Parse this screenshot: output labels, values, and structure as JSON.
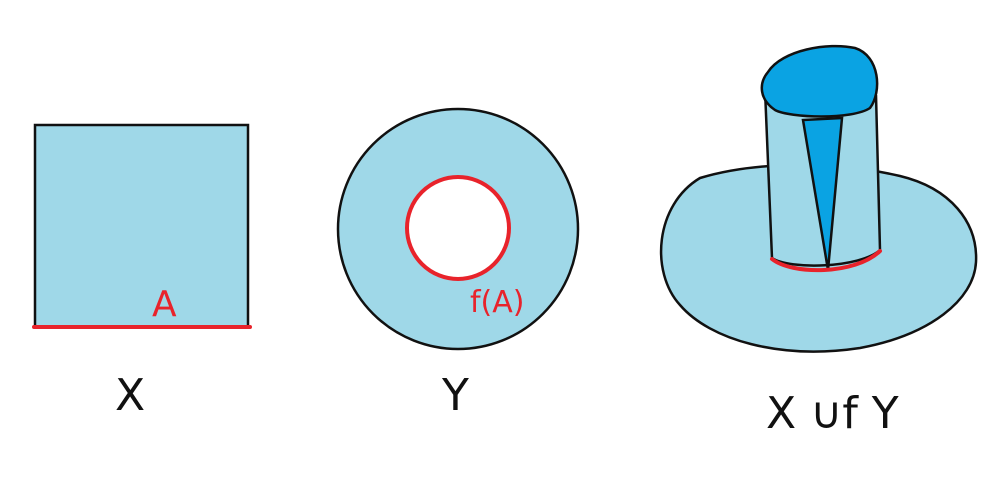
{
  "labels": {
    "x": "X",
    "y": "Y",
    "pushout": "X ∪f Y",
    "a": "A",
    "fa": "f(A)"
  },
  "colors": {
    "fill": "#9fd8e8",
    "cap": "#0aa3e3",
    "outline": "#111111",
    "highlight": "#e8232b",
    "background": "#ffffff"
  }
}
